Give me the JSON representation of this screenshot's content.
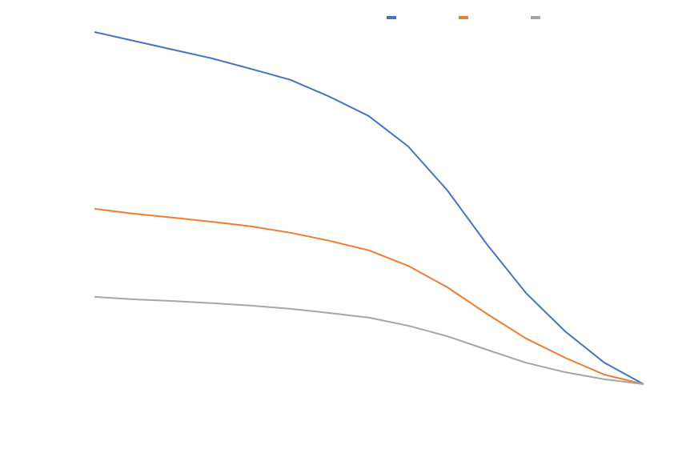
{
  "chart_data": {
    "type": "line",
    "categories": [
      null,
      null,
      null,
      null,
      null,
      null,
      null,
      null,
      null,
      null,
      null,
      null,
      null,
      null,
      null
    ],
    "ylim": [
      0,
      100
    ],
    "series": [
      {
        "color": "#4472c4",
        "values": [
          100,
          97.5,
          95,
          92.5,
          89.5,
          86.4,
          81.6,
          76.1,
          67.5,
          55,
          39.8,
          25.9,
          15,
          6.1,
          0
        ]
      },
      {
        "color": "#ed7d31",
        "values": [
          49.8,
          48.4,
          47.3,
          46.1,
          44.8,
          43,
          40.7,
          38,
          33.6,
          27.5,
          20,
          13,
          7.5,
          2.7,
          0
        ]
      },
      {
        "color": "#a5a5a5",
        "values": [
          24.8,
          24.1,
          23.6,
          23,
          22.3,
          21.4,
          20.2,
          18.9,
          16.6,
          13.6,
          9.8,
          6.1,
          3.4,
          1.4,
          0
        ]
      }
    ]
  }
}
